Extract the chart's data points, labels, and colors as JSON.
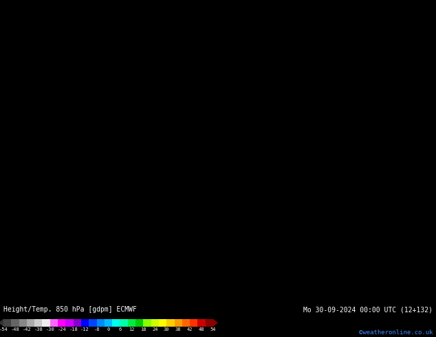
{
  "title_left": "Height/Temp. 850 hPa [gdpm] ECMWF",
  "title_right": "Mo 30-09-2024 00:00 UTC (12+132)",
  "credit": "©weatheronline.co.uk",
  "colorbar_values": [
    -54,
    -48,
    -42,
    -38,
    -30,
    -24,
    -18,
    -12,
    -8,
    0,
    6,
    12,
    18,
    24,
    30,
    38,
    42,
    48,
    54
  ],
  "bg_color": "#f5a800",
  "fig_width": 6.34,
  "fig_height": 4.9,
  "dpi": 100
}
